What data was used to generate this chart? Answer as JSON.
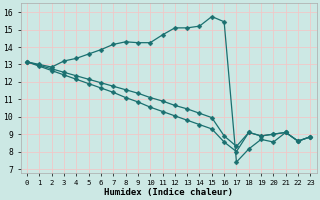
{
  "xlabel": "Humidex (Indice chaleur)",
  "bg_color": "#cce8e4",
  "grid_color": "#f0c8c8",
  "line_color": "#1a7070",
  "xlim": [
    -0.5,
    23.5
  ],
  "ylim": [
    6.8,
    16.5
  ],
  "xticks": [
    0,
    1,
    2,
    3,
    4,
    5,
    6,
    7,
    8,
    9,
    10,
    11,
    12,
    13,
    14,
    15,
    16,
    17,
    18,
    19,
    20,
    21,
    22,
    23
  ],
  "yticks": [
    7,
    8,
    9,
    10,
    11,
    12,
    13,
    14,
    15,
    16
  ],
  "line1_x": [
    0,
    1,
    2,
    3,
    4,
    5,
    6,
    7,
    8,
    9,
    10,
    11,
    12,
    13,
    14,
    15,
    16,
    17,
    18,
    19,
    20,
    21,
    22,
    23
  ],
  "line1_y": [
    13.15,
    13.0,
    12.85,
    13.2,
    13.35,
    13.6,
    13.85,
    14.15,
    14.3,
    14.25,
    14.25,
    14.7,
    15.1,
    15.1,
    15.2,
    15.75,
    15.45,
    7.4,
    8.15,
    8.7,
    8.55,
    9.1,
    8.6,
    8.85
  ],
  "line2_x": [
    0,
    1,
    2,
    3,
    4,
    5,
    6,
    7,
    8,
    9,
    10,
    11,
    12,
    13,
    14,
    15,
    16,
    17,
    18,
    19,
    20,
    21,
    22,
    23
  ],
  "line2_y": [
    13.15,
    12.9,
    12.65,
    12.4,
    12.15,
    11.9,
    11.65,
    11.4,
    11.1,
    10.85,
    10.55,
    10.3,
    10.05,
    9.8,
    9.55,
    9.3,
    8.55,
    8.0,
    9.1,
    8.9,
    9.0,
    9.1,
    8.6,
    8.85
  ],
  "line3_x": [
    0,
    1,
    2,
    3,
    4,
    5,
    6,
    7,
    8,
    9,
    10,
    11,
    12,
    13,
    14,
    15,
    16,
    17,
    18,
    19,
    20,
    21,
    22,
    23
  ],
  "line3_y": [
    13.15,
    12.95,
    12.75,
    12.55,
    12.35,
    12.15,
    11.95,
    11.75,
    11.55,
    11.35,
    11.1,
    10.9,
    10.65,
    10.45,
    10.2,
    9.95,
    8.9,
    8.3,
    9.1,
    8.9,
    9.0,
    9.1,
    8.6,
    8.85
  ],
  "marker_size": 2.5,
  "linewidth": 0.9
}
